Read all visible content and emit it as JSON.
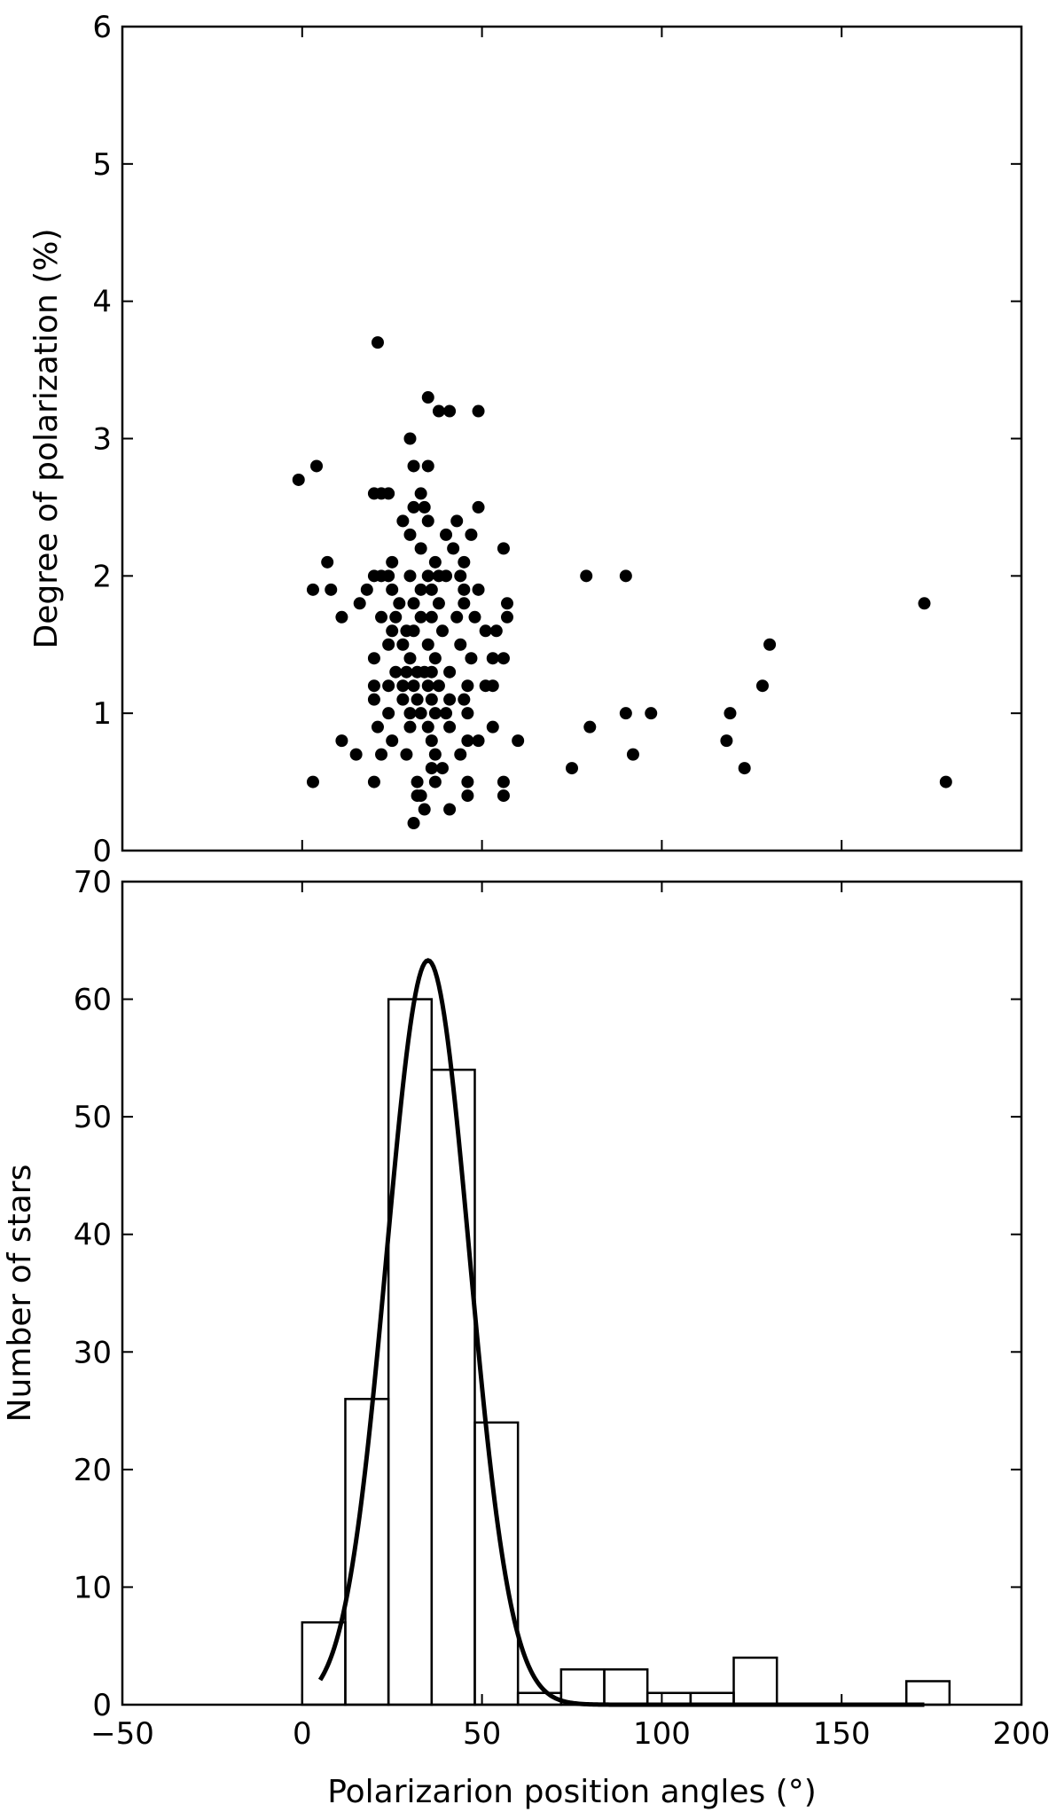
{
  "chart_data": [
    {
      "type": "scatter",
      "title": "",
      "xlabel": "",
      "ylabel": "Degree of polarization (%)",
      "xlim": [
        -50,
        200
      ],
      "ylim": [
        0,
        6
      ],
      "grid": false,
      "x_ticks": [
        "−50",
        "0",
        "50",
        "100",
        "150",
        "200"
      ],
      "x_tick_labels_shown": false,
      "y_ticks": [
        "0",
        "1",
        "2",
        "3",
        "4",
        "5",
        "6"
      ],
      "marker_color": "#000000",
      "points": [
        [
          21,
          3.7
        ],
        [
          35,
          3.3
        ],
        [
          38,
          3.2
        ],
        [
          41,
          3.2
        ],
        [
          49,
          3.2
        ],
        [
          30,
          3.0
        ],
        [
          31,
          2.8
        ],
        [
          35,
          2.8
        ],
        [
          -1,
          2.7
        ],
        [
          4,
          2.8
        ],
        [
          20,
          2.6
        ],
        [
          22,
          2.6
        ],
        [
          24,
          2.6
        ],
        [
          33,
          2.6
        ],
        [
          31,
          2.5
        ],
        [
          34,
          2.5
        ],
        [
          49,
          2.5
        ],
        [
          35,
          2.4
        ],
        [
          43,
          2.4
        ],
        [
          28,
          2.4
        ],
        [
          30,
          2.3
        ],
        [
          40,
          2.3
        ],
        [
          42,
          2.2
        ],
        [
          47,
          2.3
        ],
        [
          56,
          2.2
        ],
        [
          33,
          2.2
        ],
        [
          37,
          2.1
        ],
        [
          45,
          2.1
        ],
        [
          25,
          2.1
        ],
        [
          7,
          2.1
        ],
        [
          20,
          2.0
        ],
        [
          22,
          2.0
        ],
        [
          24,
          2.0
        ],
        [
          30,
          2.0
        ],
        [
          35,
          2.0
        ],
        [
          38,
          2.0
        ],
        [
          40,
          2.0
        ],
        [
          44,
          2.0
        ],
        [
          79,
          2.0
        ],
        [
          90,
          2.0
        ],
        [
          3,
          1.9
        ],
        [
          8,
          1.9
        ],
        [
          18,
          1.9
        ],
        [
          25,
          1.9
        ],
        [
          33,
          1.9
        ],
        [
          36,
          1.9
        ],
        [
          45,
          1.9
        ],
        [
          49,
          1.9
        ],
        [
          16,
          1.8
        ],
        [
          27,
          1.8
        ],
        [
          31,
          1.8
        ],
        [
          38,
          1.8
        ],
        [
          45,
          1.8
        ],
        [
          57,
          1.8
        ],
        [
          173,
          1.8
        ],
        [
          11,
          1.7
        ],
        [
          22,
          1.7
        ],
        [
          26,
          1.7
        ],
        [
          33,
          1.7
        ],
        [
          36,
          1.7
        ],
        [
          43,
          1.7
        ],
        [
          48,
          1.7
        ],
        [
          57,
          1.7
        ],
        [
          25,
          1.6
        ],
        [
          29,
          1.6
        ],
        [
          31,
          1.6
        ],
        [
          39,
          1.6
        ],
        [
          51,
          1.6
        ],
        [
          54,
          1.6
        ],
        [
          24,
          1.5
        ],
        [
          28,
          1.5
        ],
        [
          35,
          1.5
        ],
        [
          44,
          1.5
        ],
        [
          130,
          1.5
        ],
        [
          20,
          1.4
        ],
        [
          30,
          1.4
        ],
        [
          37,
          1.4
        ],
        [
          47,
          1.4
        ],
        [
          53,
          1.4
        ],
        [
          56,
          1.4
        ],
        [
          26,
          1.3
        ],
        [
          29,
          1.3
        ],
        [
          32,
          1.3
        ],
        [
          34,
          1.3
        ],
        [
          36,
          1.3
        ],
        [
          41,
          1.3
        ],
        [
          20,
          1.2
        ],
        [
          24,
          1.2
        ],
        [
          28,
          1.2
        ],
        [
          31,
          1.2
        ],
        [
          35,
          1.2
        ],
        [
          38,
          1.2
        ],
        [
          46,
          1.2
        ],
        [
          51,
          1.2
        ],
        [
          53,
          1.2
        ],
        [
          128,
          1.2
        ],
        [
          20,
          1.1
        ],
        [
          28,
          1.1
        ],
        [
          32,
          1.1
        ],
        [
          36,
          1.1
        ],
        [
          41,
          1.1
        ],
        [
          45,
          1.1
        ],
        [
          24,
          1.0
        ],
        [
          30,
          1.0
        ],
        [
          33,
          1.0
        ],
        [
          37,
          1.0
        ],
        [
          40,
          1.0
        ],
        [
          46,
          1.0
        ],
        [
          90,
          1.0
        ],
        [
          97,
          1.0
        ],
        [
          119,
          1.0
        ],
        [
          21,
          0.9
        ],
        [
          30,
          0.9
        ],
        [
          35,
          0.9
        ],
        [
          41,
          0.9
        ],
        [
          53,
          0.9
        ],
        [
          80,
          0.9
        ],
        [
          11,
          0.8
        ],
        [
          25,
          0.8
        ],
        [
          36,
          0.8
        ],
        [
          46,
          0.8
        ],
        [
          49,
          0.8
        ],
        [
          60,
          0.8
        ],
        [
          118,
          0.8
        ],
        [
          15,
          0.7
        ],
        [
          22,
          0.7
        ],
        [
          29,
          0.7
        ],
        [
          37,
          0.7
        ],
        [
          44,
          0.7
        ],
        [
          92,
          0.7
        ],
        [
          36,
          0.6
        ],
        [
          39,
          0.6
        ],
        [
          75,
          0.6
        ],
        [
          123,
          0.6
        ],
        [
          3,
          0.5
        ],
        [
          20,
          0.5
        ],
        [
          32,
          0.5
        ],
        [
          37,
          0.5
        ],
        [
          46,
          0.5
        ],
        [
          56,
          0.5
        ],
        [
          179,
          0.5
        ],
        [
          32,
          0.4
        ],
        [
          33,
          0.4
        ],
        [
          46,
          0.4
        ],
        [
          56,
          0.4
        ],
        [
          34,
          0.3
        ],
        [
          41,
          0.3
        ],
        [
          31,
          0.2
        ]
      ]
    },
    {
      "type": "bar",
      "title": "",
      "xlabel": "Polarizarion position angles (°)",
      "ylabel": "Number of stars",
      "xlim": [
        -50,
        200
      ],
      "ylim": [
        0,
        70
      ],
      "grid": false,
      "x_ticks": [
        "−50",
        "0",
        "50",
        "100",
        "150",
        "200"
      ],
      "y_ticks": [
        "0",
        "10",
        "20",
        "30",
        "40",
        "50",
        "60",
        "70"
      ],
      "bin_edges": [
        0,
        12,
        24,
        36,
        48,
        60,
        72,
        84,
        96,
        108,
        120,
        132,
        144,
        156,
        168,
        180
      ],
      "values": [
        7,
        26,
        60,
        54,
        24,
        1,
        3,
        3,
        1,
        1,
        4,
        0,
        0,
        0,
        2
      ],
      "fit_curve": {
        "type": "gaussian",
        "amplitude": 63.3,
        "mean": 35,
        "sigma": 11.5,
        "x_range": [
          5,
          173
        ]
      }
    }
  ]
}
